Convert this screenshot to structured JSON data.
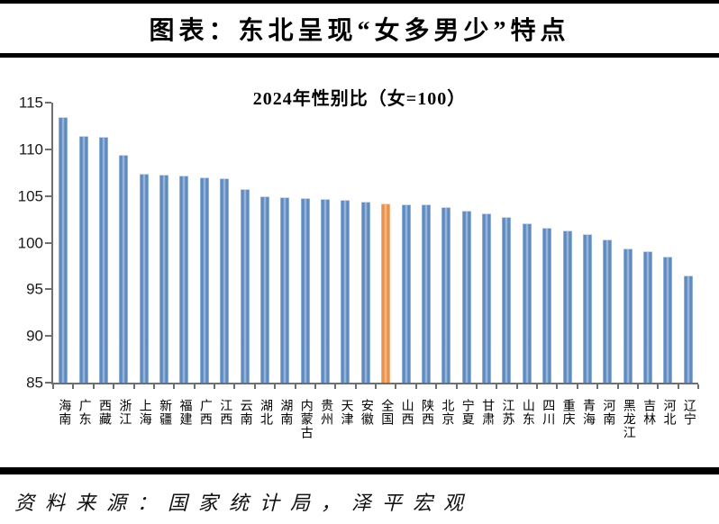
{
  "header": {
    "title": "图表：东北呈现“女多男少”特点"
  },
  "footer": {
    "source": "资料来源：国家统计局，泽平宏观"
  },
  "chart_data": {
    "type": "bar",
    "title": "2024年性别比（女=100）",
    "xlabel": "",
    "ylabel": "",
    "categories": [
      "海南",
      "广东",
      "西藏",
      "浙江",
      "上海",
      "新疆",
      "福建",
      "广西",
      "江西",
      "云南",
      "湖北",
      "湖南",
      "内蒙古",
      "贵州",
      "天津",
      "安徽",
      "全国",
      "山西",
      "陕西",
      "北京",
      "宁夏",
      "甘肃",
      "江苏",
      "山东",
      "四川",
      "重庆",
      "青海",
      "河南",
      "黑龙江",
      "吉林",
      "河北",
      "辽宁"
    ],
    "values": [
      113.4,
      111.3,
      111.2,
      109.3,
      107.3,
      107.2,
      107.1,
      106.9,
      106.8,
      105.6,
      104.9,
      104.8,
      104.7,
      104.6,
      104.5,
      104.3,
      104.1,
      104.0,
      104.0,
      103.7,
      103.3,
      103.0,
      102.7,
      102.0,
      101.5,
      101.2,
      100.8,
      100.2,
      99.3,
      99.0,
      98.4,
      96.4
    ],
    "highlight_category": "全国",
    "highlight_index": 16,
    "ylim": [
      85,
      115
    ],
    "y_ticks": [
      85,
      90,
      95,
      100,
      105,
      110,
      115
    ],
    "grid": false,
    "legend": false,
    "bar_color": "#4f81bd",
    "highlight_color": "#ed7d31",
    "axis_color": "#6f6f6f"
  }
}
